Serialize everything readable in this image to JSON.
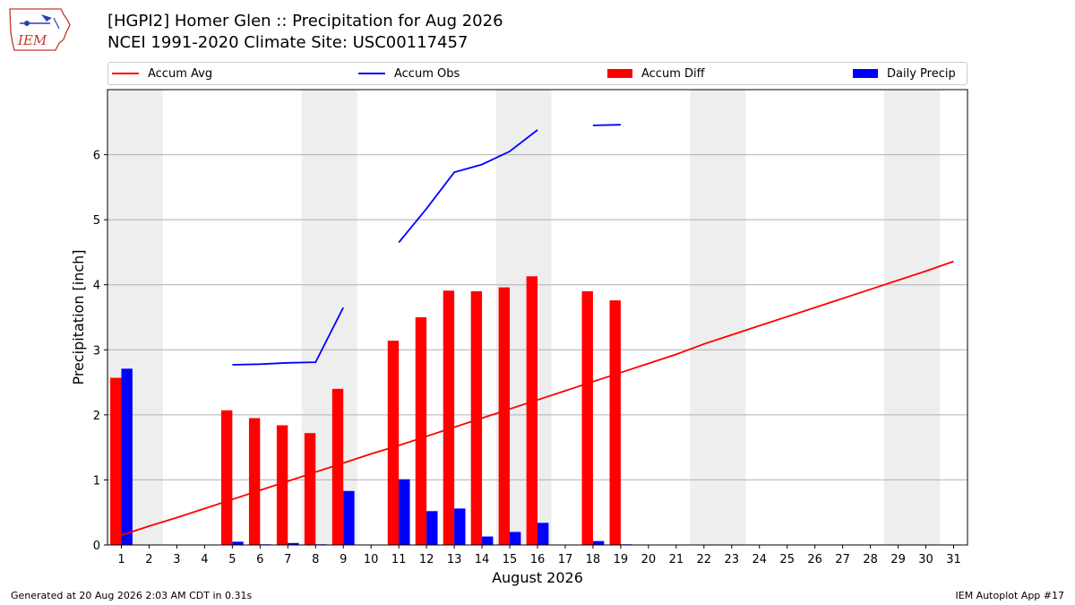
{
  "header": {
    "logo_text": "IEM",
    "title_line1": "[HGPI2] Homer Glen :: Precipitation for Aug 2026",
    "title_line2": "NCEI 1991-2020 Climate Site: USC00117457"
  },
  "legend": [
    {
      "label": "Accum Avg",
      "kind": "line",
      "color": "#ff0000"
    },
    {
      "label": "Accum Obs",
      "kind": "line",
      "color": "#0000ff"
    },
    {
      "label": "Accum Diff",
      "kind": "patch",
      "color": "#ff0000"
    },
    {
      "label": "Daily Precip",
      "kind": "patch",
      "color": "#0000ff"
    }
  ],
  "footer": {
    "left": "Generated at 20 Aug 2026 2:03 AM CDT in 0.31s",
    "right": "IEM Autoplot App #17"
  },
  "chart_data": {
    "type": "bar",
    "xlabel": "August 2026",
    "ylabel": "Precipitation [inch]",
    "xlim": [
      0.5,
      31.5
    ],
    "ylim": [
      0,
      7
    ],
    "yticks": [
      0,
      1,
      2,
      3,
      4,
      5,
      6
    ],
    "categories": [
      "1",
      "2",
      "3",
      "4",
      "5",
      "6",
      "7",
      "8",
      "9",
      "10",
      "11",
      "12",
      "13",
      "14",
      "15",
      "16",
      "17",
      "18",
      "19",
      "20",
      "21",
      "22",
      "23",
      "24",
      "25",
      "26",
      "27",
      "28",
      "29",
      "30",
      "31"
    ],
    "weekend_shading_days": [
      1,
      8,
      15,
      22,
      29
    ],
    "grid": "horizontal",
    "legend_position": "top",
    "colors": {
      "avg": "#ff0000",
      "obs": "#0000ff",
      "diff": "#ff0000",
      "daily": "#0000ff",
      "shade": "#eeeeee",
      "grid": "#b0b0b0"
    },
    "series": [
      {
        "name": "Accum Avg",
        "kind": "line",
        "values": [
          0.15,
          0.29,
          0.42,
          0.56,
          0.7,
          0.84,
          0.98,
          1.12,
          1.26,
          1.4,
          1.53,
          1.67,
          1.81,
          1.95,
          2.09,
          2.23,
          2.37,
          2.51,
          2.65,
          2.79,
          2.93,
          3.09,
          3.23,
          3.37,
          3.51,
          3.65,
          3.79,
          3.93,
          4.07,
          4.21,
          4.36
        ]
      },
      {
        "name": "Accum Obs",
        "kind": "line",
        "values": [
          null,
          null,
          null,
          null,
          2.77,
          2.78,
          2.8,
          2.81,
          3.65,
          null,
          4.65,
          5.17,
          5.73,
          5.85,
          6.05,
          6.38,
          null,
          6.45,
          6.46,
          null,
          null,
          null,
          null,
          null,
          null,
          null,
          null,
          null,
          null,
          null,
          null
        ]
      },
      {
        "name": "Accum Diff",
        "kind": "bar",
        "values": [
          2.57,
          null,
          null,
          null,
          2.07,
          1.95,
          1.84,
          1.72,
          2.4,
          null,
          3.14,
          3.5,
          3.91,
          3.9,
          3.96,
          4.13,
          null,
          3.9,
          3.76,
          null,
          null,
          null,
          null,
          null,
          null,
          null,
          null,
          null,
          null,
          null,
          null
        ]
      },
      {
        "name": "Daily Precip",
        "kind": "bar",
        "values": [
          2.71,
          null,
          null,
          null,
          0.05,
          0.01,
          0.03,
          0.01,
          0.83,
          null,
          1.01,
          0.52,
          0.56,
          0.13,
          0.2,
          0.34,
          null,
          0.06,
          0.01,
          null,
          null,
          null,
          null,
          null,
          null,
          null,
          null,
          null,
          null,
          null,
          null
        ]
      }
    ]
  }
}
